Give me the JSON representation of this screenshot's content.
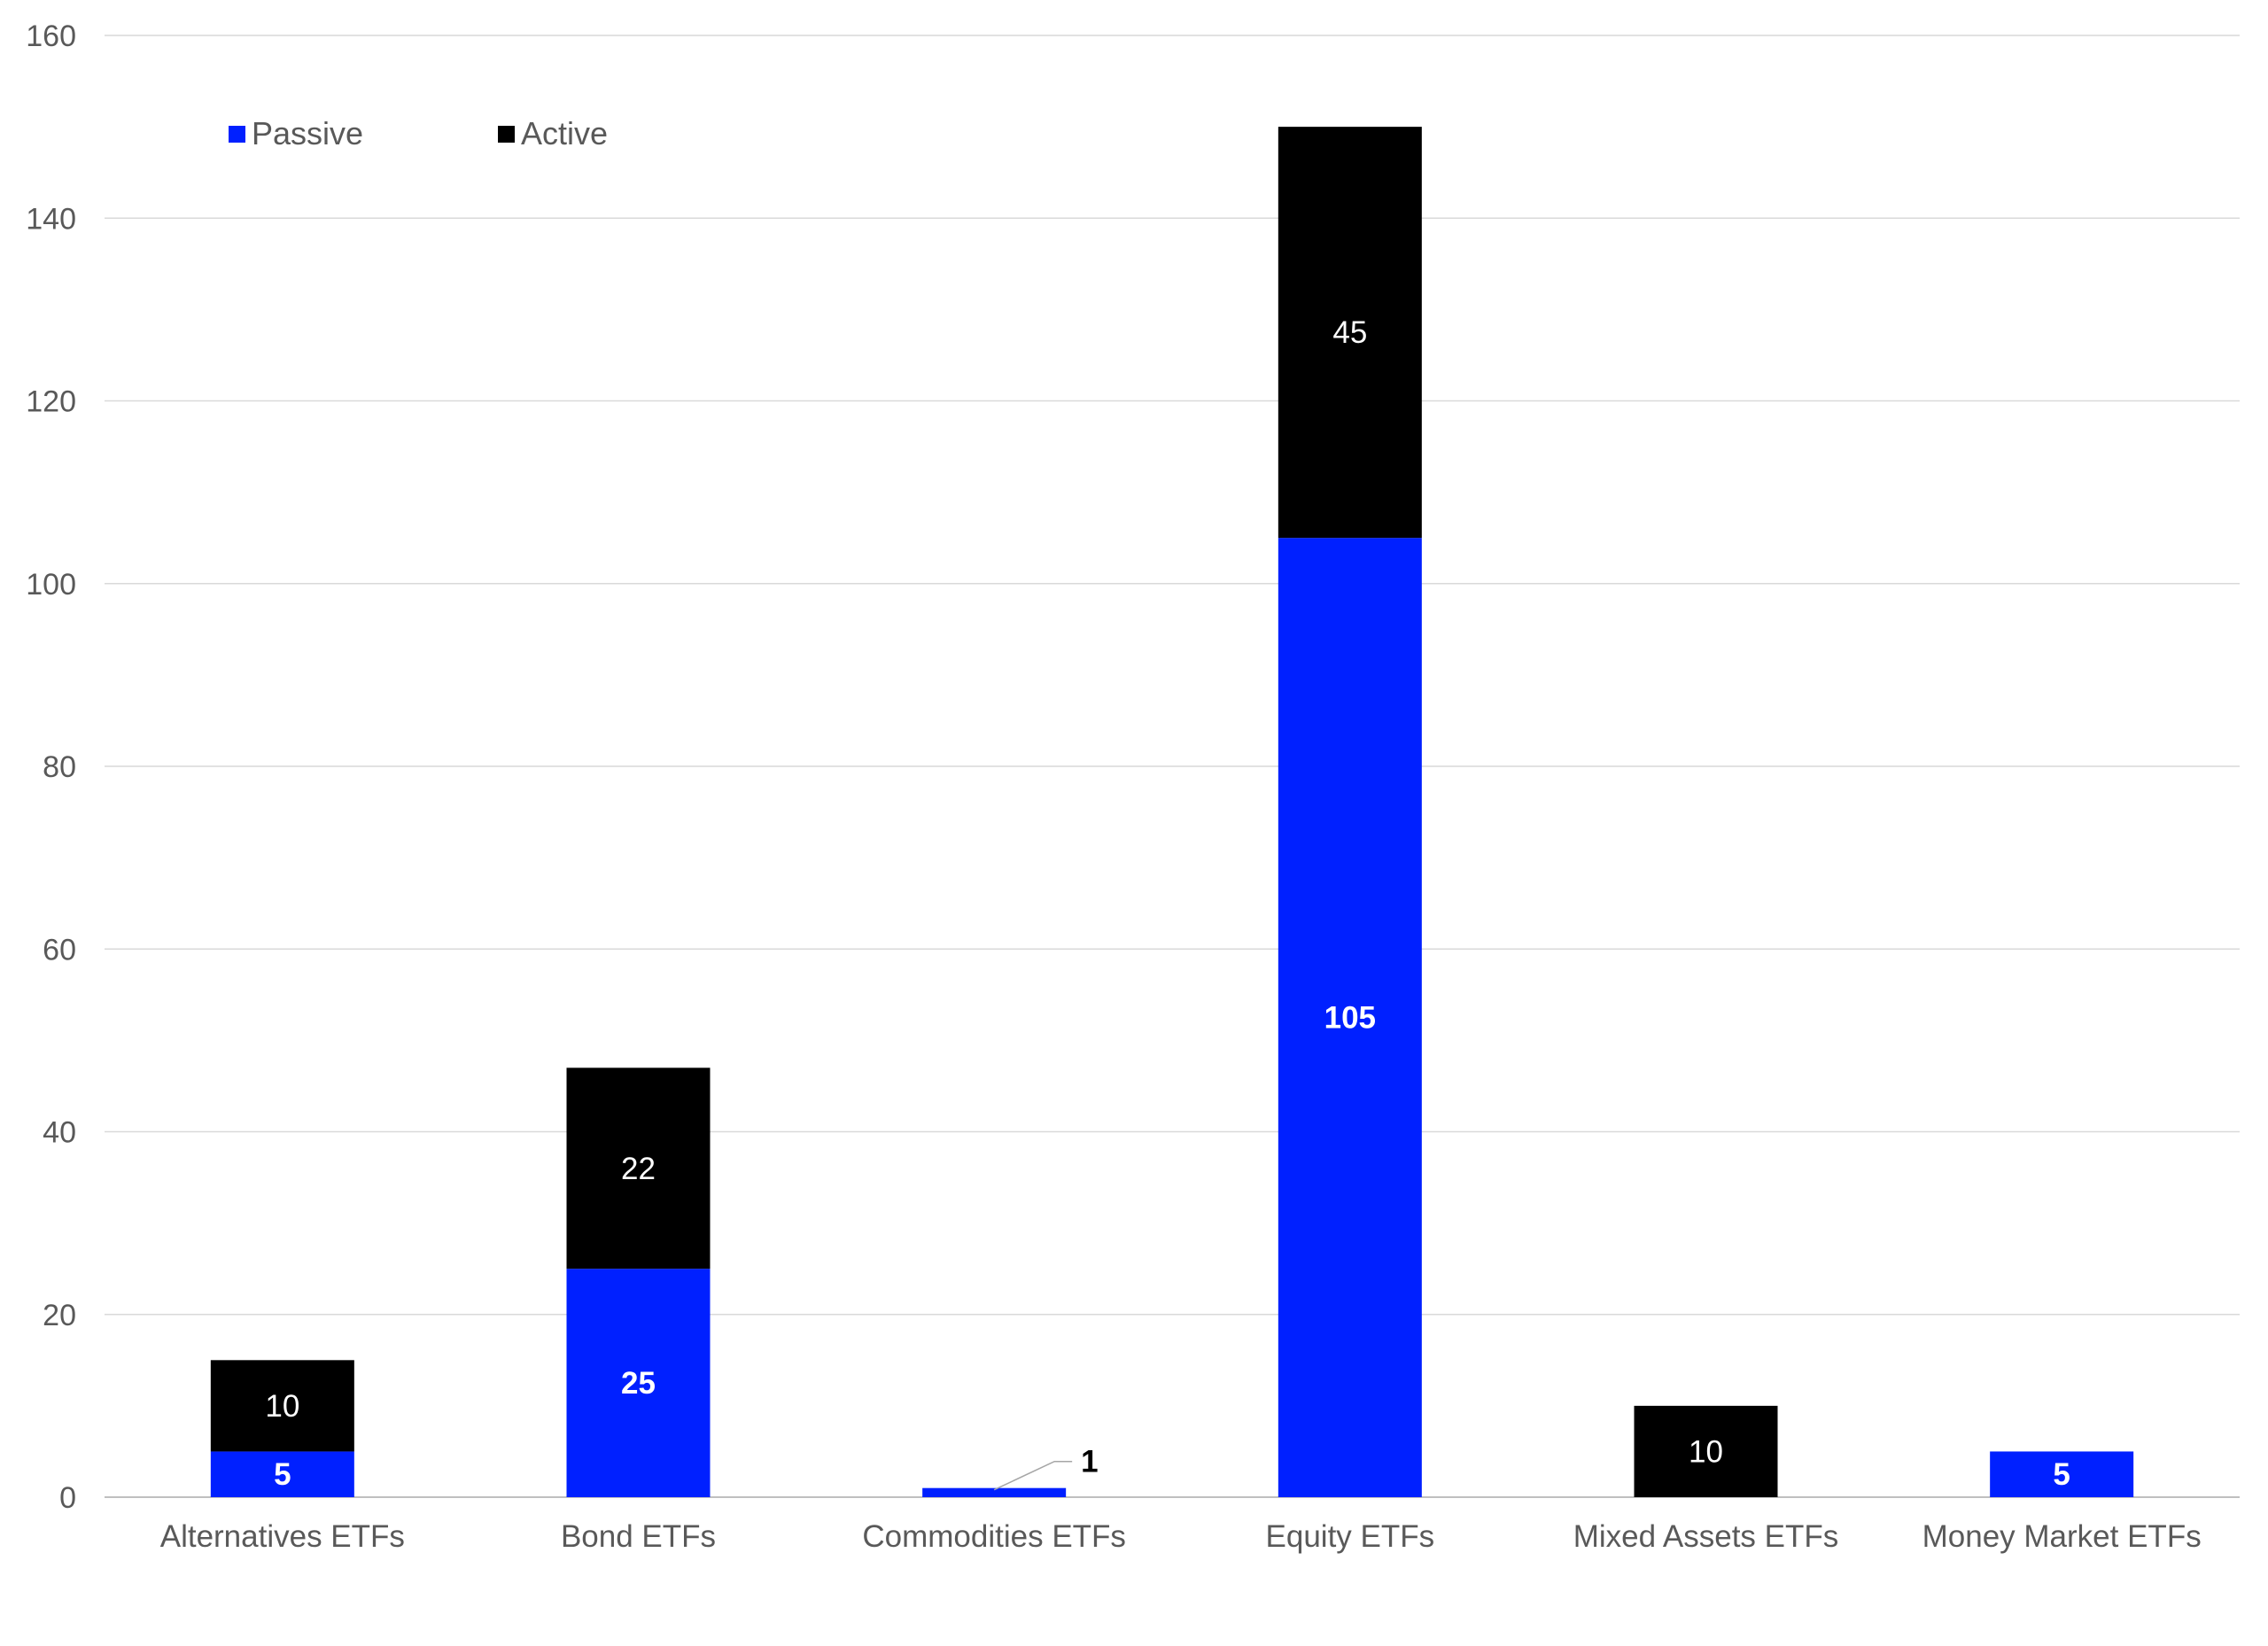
{
  "chart_data": {
    "type": "bar",
    "stacked": true,
    "categories": [
      "Alternatives ETFs",
      "Bond ETFs",
      "Commodities ETFs",
      "Equity ETFs",
      "Mixed Assets ETFs",
      "Money Market ETFs"
    ],
    "series": [
      {
        "name": "Passive",
        "color": "#0020ff",
        "values": [
          5,
          25,
          1,
          105,
          0,
          5
        ],
        "labels": [
          "5",
          "25",
          "1",
          "105",
          "",
          "5"
        ]
      },
      {
        "name": "Active",
        "color": "#000000",
        "values": [
          10,
          22,
          0,
          45,
          10,
          0
        ],
        "labels": [
          "10",
          "22",
          "",
          "45",
          "10",
          ""
        ]
      }
    ],
    "ylim": [
      0,
      160
    ],
    "yticks": [
      0,
      20,
      40,
      60,
      80,
      100,
      120,
      140,
      160
    ],
    "ytick_labels": [
      "0",
      "20",
      "40",
      "60",
      "80",
      "100",
      "120",
      "140",
      "160"
    ],
    "grid": true,
    "legend_position": "top-left",
    "xlabel": "",
    "ylabel": ""
  }
}
